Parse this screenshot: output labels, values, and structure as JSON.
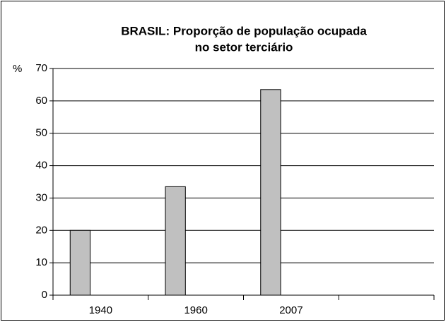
{
  "chart_data": {
    "type": "bar",
    "title": [
      "BRASIL: Proporção de população ocupada",
      "no setor terciário"
    ],
    "ylabel": "%",
    "categories": [
      "1940",
      "1960",
      "2007",
      null
    ],
    "values": [
      20,
      33.5,
      63.5,
      null
    ],
    "color": "#c0c0c0",
    "ylim": [
      0,
      70
    ],
    "yticks": [
      0,
      10,
      20,
      30,
      40,
      50,
      60,
      70
    ],
    "grid": true
  }
}
